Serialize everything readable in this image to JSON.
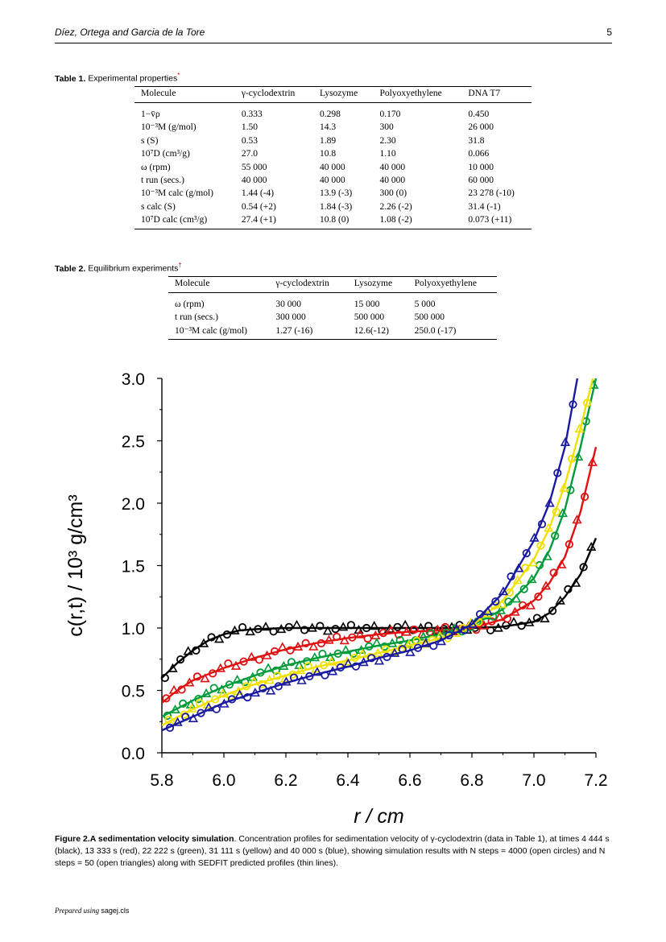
{
  "header": {
    "authors": "Díez, Ortega and Garcia de la Tore",
    "page": "5"
  },
  "table1": {
    "label": "Table 1.",
    "title": "Experimental properties",
    "mark": "*",
    "columns": [
      "Molecule",
      "γ-cyclodextrin",
      "Lysozyme",
      "Polyoxyethylene",
      "DNA T7"
    ],
    "rows": [
      [
        "1−v̄ρ",
        "0.333",
        "0.298",
        "0.170",
        "0.450"
      ],
      [
        "10⁻³M (g/mol)",
        "1.50",
        "14.3",
        "300",
        "26 000"
      ],
      [
        "s (S)",
        "0.53",
        "1.89",
        "2.30",
        "31.8"
      ],
      [
        "10⁷D (cm³/g)",
        "27.0",
        "10.8",
        "1.10",
        "0.066"
      ],
      [
        "ω (rpm)",
        "55 000",
        "40 000",
        "40 000",
        "10 000"
      ],
      [
        "t run (secs.)",
        "40 000",
        "40 000",
        "40 000",
        "60 000"
      ],
      [
        "10⁻³M calc (g/mol)",
        "1.44 (-4)",
        "13.9 (-3)",
        "300 (0)",
        "23 278 (-10)"
      ],
      [
        "s calc (S)",
        "0.54 (+2)",
        "1.84 (-3)",
        "2.26 (-2)",
        "31.4 (-1)"
      ],
      [
        "10⁷D calc (cm³/g)",
        "27.4 (+1)",
        "10.8 (0)",
        "1.08 (-2)",
        "0.073 (+11)"
      ]
    ]
  },
  "table2": {
    "label": "Table 2.",
    "title": "Equilibrium experiments",
    "mark": "†",
    "columns": [
      "Molecule",
      "γ-cyclodextrin",
      "Lysozyme",
      "Polyoxyethylene"
    ],
    "rows": [
      [
        "ω (rpm)",
        "30 000",
        "15 000",
        "5 000"
      ],
      [
        "t run (secs.)",
        "300 000",
        "500 000",
        "500 000"
      ],
      [
        "10⁻³M calc (g/mol)",
        "1.27 (-16)",
        "12.6(-12)",
        "250.0 (-17)"
      ]
    ]
  },
  "chart_data": {
    "type": "line",
    "xlabel": "r / cm",
    "ylabel": "c(r,t)  / 10³ g/cm³",
    "xlim": [
      5.8,
      7.2
    ],
    "ylim": [
      0.0,
      3.0
    ],
    "xticks": [
      "5.8",
      "6.0",
      "6.2",
      "6.4",
      "6.6",
      "6.8",
      "7.0",
      "7.2"
    ],
    "yticks": [
      "0.0",
      "0.5",
      "1.0",
      "1.5",
      "2.0",
      "2.5",
      "3.0"
    ],
    "series": [
      {
        "color": "#000000",
        "x": [
          5.8,
          5.85,
          5.9,
          5.95,
          6.0,
          6.05,
          6.1,
          6.2,
          6.3,
          6.4,
          6.5,
          6.6,
          6.7,
          6.8,
          6.9,
          7.0,
          7.05,
          7.1,
          7.15,
          7.2
        ],
        "y": [
          0.6,
          0.72,
          0.82,
          0.9,
          0.95,
          0.98,
          0.99,
          1.0,
          1.0,
          1.0,
          1.0,
          1.0,
          1.0,
          1.0,
          1.01,
          1.05,
          1.12,
          1.25,
          1.43,
          1.72
        ]
      },
      {
        "color": "#e01010",
        "x": [
          5.8,
          5.85,
          5.9,
          6.0,
          6.1,
          6.2,
          6.3,
          6.4,
          6.5,
          6.6,
          6.7,
          6.8,
          6.9,
          7.0,
          7.05,
          7.1,
          7.15,
          7.2
        ],
        "y": [
          0.4,
          0.5,
          0.58,
          0.68,
          0.76,
          0.83,
          0.88,
          0.92,
          0.95,
          0.97,
          0.98,
          1.0,
          1.07,
          1.22,
          1.36,
          1.57,
          1.93,
          2.45
        ]
      },
      {
        "color": "#009b3a",
        "x": [
          5.8,
          5.9,
          6.0,
          6.1,
          6.2,
          6.3,
          6.4,
          6.5,
          6.6,
          6.7,
          6.8,
          6.9,
          7.0,
          7.05,
          7.1,
          7.15,
          7.2
        ],
        "y": [
          0.29,
          0.42,
          0.53,
          0.62,
          0.7,
          0.76,
          0.81,
          0.86,
          0.9,
          0.95,
          1.02,
          1.15,
          1.4,
          1.62,
          1.95,
          2.45,
          3.0
        ]
      },
      {
        "color": "#f0e000",
        "x": [
          5.8,
          5.9,
          6.0,
          6.1,
          6.2,
          6.3,
          6.4,
          6.5,
          6.6,
          6.7,
          6.8,
          6.9,
          7.0,
          7.05,
          7.1,
          7.15,
          7.19
        ],
        "y": [
          0.22,
          0.35,
          0.46,
          0.55,
          0.62,
          0.69,
          0.74,
          0.8,
          0.86,
          0.92,
          1.02,
          1.22,
          1.55,
          1.8,
          2.15,
          2.6,
          3.0
        ]
      },
      {
        "color": "#1a1aa0",
        "x": [
          5.8,
          5.9,
          6.0,
          6.1,
          6.2,
          6.3,
          6.4,
          6.5,
          6.6,
          6.7,
          6.8,
          6.9,
          7.0,
          7.05,
          7.1,
          7.14
        ],
        "y": [
          0.18,
          0.29,
          0.4,
          0.48,
          0.56,
          0.63,
          0.69,
          0.76,
          0.82,
          0.9,
          1.03,
          1.28,
          1.7,
          2.0,
          2.45,
          3.0
        ]
      }
    ]
  },
  "figure": {
    "label": "Figure 2.",
    "title": "A sedimentation velocity simulation",
    "text": ". Concentration profiles for sedimentation velocity of γ-cyclodextrin (data in Table 1), at times 4 444 s (black), 13 333 s (red), 22 222 s (green), 31 111 s (yellow) and 40 000 s (blue), showing simulation results with N steps = 4000 (open circles) and N steps = 50 (open triangles) along with SEDFIT predicted profiles (thin lines)."
  },
  "footer": {
    "prefix": "Prepared using",
    "file": "sagej.cls"
  }
}
